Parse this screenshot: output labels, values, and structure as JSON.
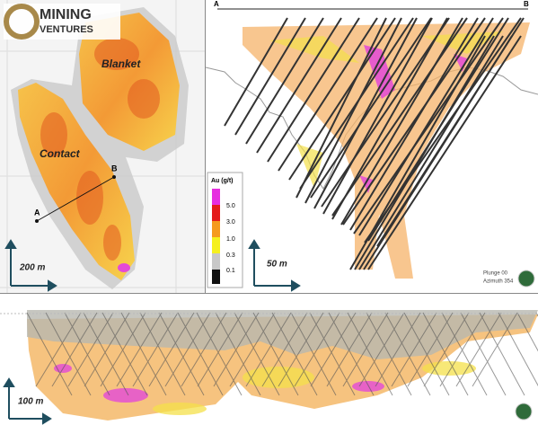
{
  "logo": {
    "line1": "MINING",
    "line2": "VENTURES"
  },
  "plan": {
    "labels": [
      "Blanket",
      "Contact"
    ],
    "section_start": "A",
    "section_end": "B",
    "scale": "200 m"
  },
  "section": {
    "section_start": "A",
    "section_end": "B",
    "scale": "50 m",
    "plunge": "Plunge 00",
    "azimuth": "Azimuth 354",
    "legend": {
      "title": "Au (g/t)",
      "labels": [
        "5.0",
        "3.0",
        "1.0",
        "0.3",
        "0.1"
      ]
    }
  },
  "long_section": {
    "scale": "100 m"
  }
}
